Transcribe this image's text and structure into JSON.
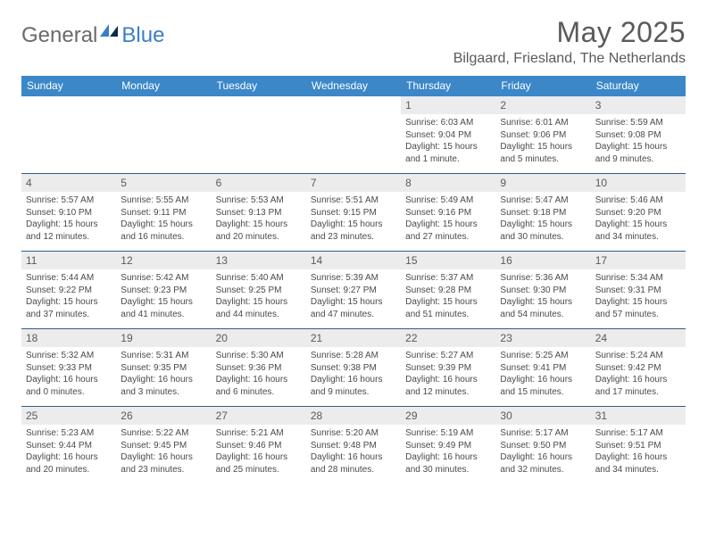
{
  "logo": {
    "text1": "General",
    "text2": "Blue"
  },
  "title": "May 2025",
  "location": "Bilgaard, Friesland, The Netherlands",
  "colors": {
    "header_band": "#3b87c8",
    "week_divider": "#2f5e87",
    "day_band": "#ececec",
    "text_muted": "#5a5a5a",
    "body_text": "#4a4a4a",
    "logo_accent": "#3b7fc4",
    "logo_dark": "#0c2a4a",
    "background": "#ffffff"
  },
  "daysOfWeek": [
    "Sunday",
    "Monday",
    "Tuesday",
    "Wednesday",
    "Thursday",
    "Friday",
    "Saturday"
  ],
  "firstDayColumn": 4,
  "daysInMonth": 31,
  "cells": {
    "1": {
      "sunrise": "Sunrise: 6:03 AM",
      "sunset": "Sunset: 9:04 PM",
      "daylight": "Daylight: 15 hours and 1 minute."
    },
    "2": {
      "sunrise": "Sunrise: 6:01 AM",
      "sunset": "Sunset: 9:06 PM",
      "daylight": "Daylight: 15 hours and 5 minutes."
    },
    "3": {
      "sunrise": "Sunrise: 5:59 AM",
      "sunset": "Sunset: 9:08 PM",
      "daylight": "Daylight: 15 hours and 9 minutes."
    },
    "4": {
      "sunrise": "Sunrise: 5:57 AM",
      "sunset": "Sunset: 9:10 PM",
      "daylight": "Daylight: 15 hours and 12 minutes."
    },
    "5": {
      "sunrise": "Sunrise: 5:55 AM",
      "sunset": "Sunset: 9:11 PM",
      "daylight": "Daylight: 15 hours and 16 minutes."
    },
    "6": {
      "sunrise": "Sunrise: 5:53 AM",
      "sunset": "Sunset: 9:13 PM",
      "daylight": "Daylight: 15 hours and 20 minutes."
    },
    "7": {
      "sunrise": "Sunrise: 5:51 AM",
      "sunset": "Sunset: 9:15 PM",
      "daylight": "Daylight: 15 hours and 23 minutes."
    },
    "8": {
      "sunrise": "Sunrise: 5:49 AM",
      "sunset": "Sunset: 9:16 PM",
      "daylight": "Daylight: 15 hours and 27 minutes."
    },
    "9": {
      "sunrise": "Sunrise: 5:47 AM",
      "sunset": "Sunset: 9:18 PM",
      "daylight": "Daylight: 15 hours and 30 minutes."
    },
    "10": {
      "sunrise": "Sunrise: 5:46 AM",
      "sunset": "Sunset: 9:20 PM",
      "daylight": "Daylight: 15 hours and 34 minutes."
    },
    "11": {
      "sunrise": "Sunrise: 5:44 AM",
      "sunset": "Sunset: 9:22 PM",
      "daylight": "Daylight: 15 hours and 37 minutes."
    },
    "12": {
      "sunrise": "Sunrise: 5:42 AM",
      "sunset": "Sunset: 9:23 PM",
      "daylight": "Daylight: 15 hours and 41 minutes."
    },
    "13": {
      "sunrise": "Sunrise: 5:40 AM",
      "sunset": "Sunset: 9:25 PM",
      "daylight": "Daylight: 15 hours and 44 minutes."
    },
    "14": {
      "sunrise": "Sunrise: 5:39 AM",
      "sunset": "Sunset: 9:27 PM",
      "daylight": "Daylight: 15 hours and 47 minutes."
    },
    "15": {
      "sunrise": "Sunrise: 5:37 AM",
      "sunset": "Sunset: 9:28 PM",
      "daylight": "Daylight: 15 hours and 51 minutes."
    },
    "16": {
      "sunrise": "Sunrise: 5:36 AM",
      "sunset": "Sunset: 9:30 PM",
      "daylight": "Daylight: 15 hours and 54 minutes."
    },
    "17": {
      "sunrise": "Sunrise: 5:34 AM",
      "sunset": "Sunset: 9:31 PM",
      "daylight": "Daylight: 15 hours and 57 minutes."
    },
    "18": {
      "sunrise": "Sunrise: 5:32 AM",
      "sunset": "Sunset: 9:33 PM",
      "daylight": "Daylight: 16 hours and 0 minutes."
    },
    "19": {
      "sunrise": "Sunrise: 5:31 AM",
      "sunset": "Sunset: 9:35 PM",
      "daylight": "Daylight: 16 hours and 3 minutes."
    },
    "20": {
      "sunrise": "Sunrise: 5:30 AM",
      "sunset": "Sunset: 9:36 PM",
      "daylight": "Daylight: 16 hours and 6 minutes."
    },
    "21": {
      "sunrise": "Sunrise: 5:28 AM",
      "sunset": "Sunset: 9:38 PM",
      "daylight": "Daylight: 16 hours and 9 minutes."
    },
    "22": {
      "sunrise": "Sunrise: 5:27 AM",
      "sunset": "Sunset: 9:39 PM",
      "daylight": "Daylight: 16 hours and 12 minutes."
    },
    "23": {
      "sunrise": "Sunrise: 5:25 AM",
      "sunset": "Sunset: 9:41 PM",
      "daylight": "Daylight: 16 hours and 15 minutes."
    },
    "24": {
      "sunrise": "Sunrise: 5:24 AM",
      "sunset": "Sunset: 9:42 PM",
      "daylight": "Daylight: 16 hours and 17 minutes."
    },
    "25": {
      "sunrise": "Sunrise: 5:23 AM",
      "sunset": "Sunset: 9:44 PM",
      "daylight": "Daylight: 16 hours and 20 minutes."
    },
    "26": {
      "sunrise": "Sunrise: 5:22 AM",
      "sunset": "Sunset: 9:45 PM",
      "daylight": "Daylight: 16 hours and 23 minutes."
    },
    "27": {
      "sunrise": "Sunrise: 5:21 AM",
      "sunset": "Sunset: 9:46 PM",
      "daylight": "Daylight: 16 hours and 25 minutes."
    },
    "28": {
      "sunrise": "Sunrise: 5:20 AM",
      "sunset": "Sunset: 9:48 PM",
      "daylight": "Daylight: 16 hours and 28 minutes."
    },
    "29": {
      "sunrise": "Sunrise: 5:19 AM",
      "sunset": "Sunset: 9:49 PM",
      "daylight": "Daylight: 16 hours and 30 minutes."
    },
    "30": {
      "sunrise": "Sunrise: 5:17 AM",
      "sunset": "Sunset: 9:50 PM",
      "daylight": "Daylight: 16 hours and 32 minutes."
    },
    "31": {
      "sunrise": "Sunrise: 5:17 AM",
      "sunset": "Sunset: 9:51 PM",
      "daylight": "Daylight: 16 hours and 34 minutes."
    }
  }
}
